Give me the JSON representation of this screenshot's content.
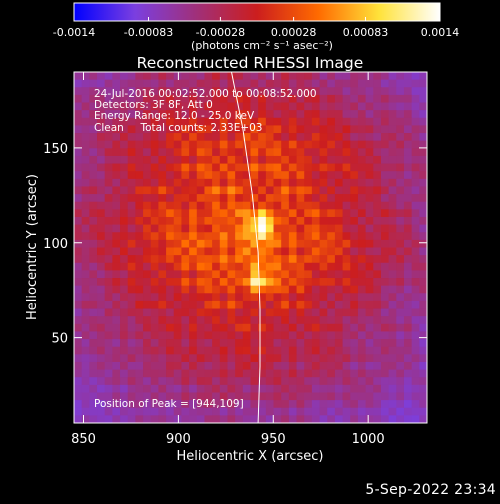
{
  "colorbar": {
    "tick_labels": [
      "-0.0014",
      "-0.00083",
      "-0.00028",
      "0.00028",
      "0.00083",
      "0.0014"
    ],
    "tick_values": [
      -0.0014,
      -0.00083,
      -0.00028,
      0.00028,
      0.00083,
      0.0014
    ],
    "range": [
      -0.0014,
      0.0014
    ],
    "units_label": "(photons cm⁻² s⁻¹ asec⁻²)",
    "stops": [
      "#0000ff",
      "#7b3fe0",
      "#a0307a",
      "#cc1e1e",
      "#ff6a00",
      "#ffe23a",
      "#ffffff"
    ]
  },
  "chart_data": {
    "type": "heatmap",
    "title": "Reconstructed RHESSI Image",
    "xlabel": "Heliocentric X (arcsec)",
    "ylabel": "Heliocentric Y (arcsec)",
    "xlim": [
      845,
      1031
    ],
    "ylim": [
      5,
      190
    ],
    "x_ticks": [
      850,
      900,
      950,
      1000
    ],
    "y_ticks": [
      50,
      100,
      150
    ],
    "annotations": [
      "24-Jul-2016 00:02:52.000 to 00:08:52.000",
      "Detectors: 3F 8F, Att 0",
      "Energy Range: 12.0 - 25.0 keV",
      "Clean     Total counts: 2.33E+03"
    ],
    "peak_label": "Position of Peak = [944,109]",
    "peak": [
      944,
      109
    ],
    "secondary_source": [
      942,
      80
    ],
    "limb_curve": {
      "x": [
        928,
        934,
        939,
        942,
        943,
        943,
        942
      ],
      "y": [
        190,
        160,
        125,
        95,
        65,
        35,
        5
      ]
    }
  },
  "footer": {
    "date": "5-Sep-2022 23:34"
  }
}
